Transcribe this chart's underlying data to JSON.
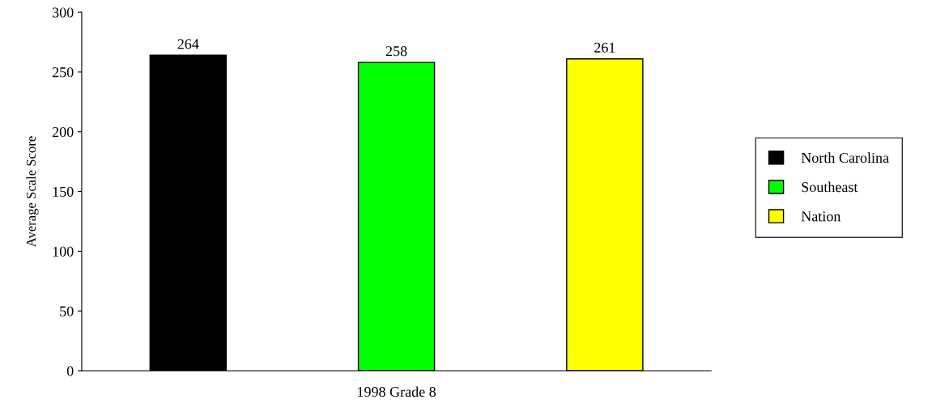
{
  "chart_data": {
    "type": "bar",
    "categories": [
      "1998 Grade 8"
    ],
    "ylabel": "Average Scale Score",
    "series": [
      {
        "name": "North Carolina",
        "color": "#000000",
        "values": [
          264
        ]
      },
      {
        "name": "Southeast",
        "color": "#00ff00",
        "values": [
          258
        ]
      },
      {
        "name": "Nation",
        "color": "#ffff00",
        "values": [
          261
        ]
      }
    ],
    "ylim": [
      0,
      300
    ],
    "yticks": [
      0,
      50,
      100,
      150,
      200,
      250,
      300
    ],
    "data_labels": true,
    "legend": "right",
    "grid": false
  }
}
